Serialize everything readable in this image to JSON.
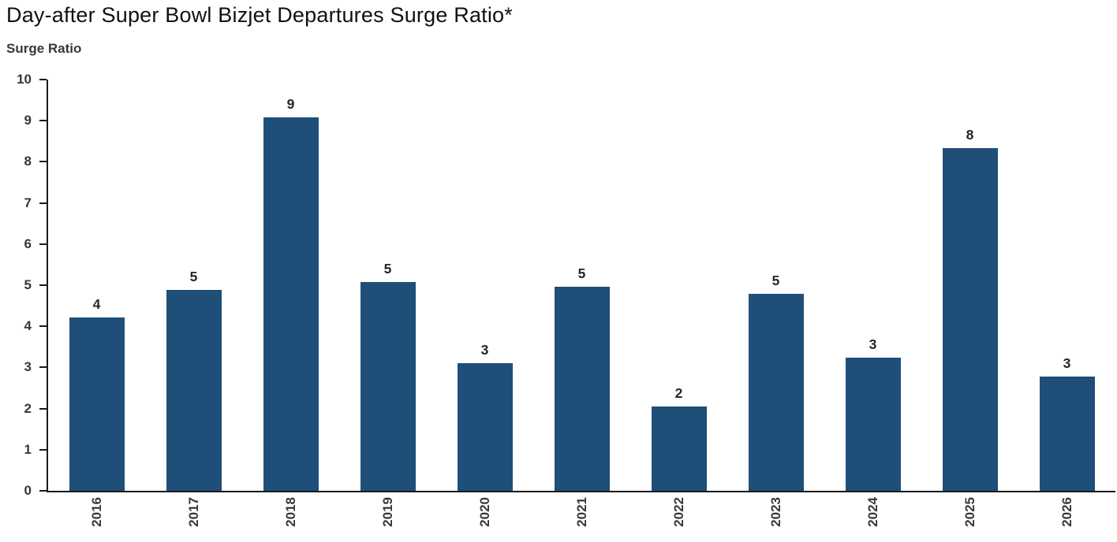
{
  "chart_data": {
    "type": "bar",
    "title": "Day-after Super Bowl Bizjet Departures Surge Ratio*",
    "ylabel": "Surge Ratio",
    "xlabel": "",
    "categories": [
      "2016",
      "2017",
      "2018",
      "2019",
      "2020",
      "2021",
      "2022",
      "2023",
      "2024",
      "2025",
      "2026"
    ],
    "values": [
      4.21,
      4.89,
      9.08,
      5.08,
      3.1,
      4.96,
      2.05,
      4.79,
      3.24,
      8.33,
      2.78
    ],
    "bar_labels": [
      "4",
      "5",
      "9",
      "5",
      "3",
      "5",
      "2",
      "5",
      "3",
      "8",
      "3"
    ],
    "ylim": [
      0,
      10
    ],
    "yticks": [
      0,
      1,
      2,
      3,
      4,
      5,
      6,
      7,
      8,
      9,
      10
    ],
    "grid": false,
    "legend": false,
    "bar_color": "#1F4E79",
    "axis_color": "#1a1a1a",
    "text_color": "#383838",
    "data_label_color": "#262626"
  }
}
